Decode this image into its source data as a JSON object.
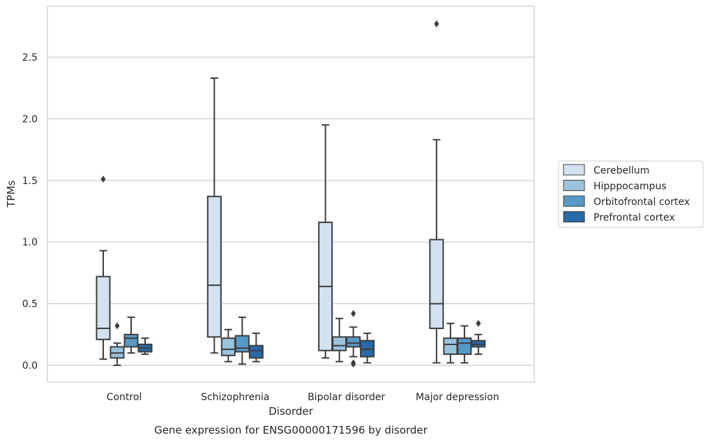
{
  "chart_data": {
    "type": "box",
    "title": "",
    "caption": "Gene expression for ENSG00000171596 by disorder",
    "xlabel": "Disorder",
    "ylabel": "TPMs",
    "ylim": [
      -0.13,
      2.9
    ],
    "yticks": [
      0.0,
      0.5,
      1.0,
      1.5,
      2.0,
      2.5
    ],
    "ytick_labels": [
      "0.0",
      "0.5",
      "1.0",
      "1.5",
      "2.0",
      "2.5"
    ],
    "grid": "horizontal",
    "legend_position": "right",
    "categories": [
      "Control",
      "Schizophrenia",
      "Bipolar disorder",
      "Major depression"
    ],
    "series": [
      {
        "name": "Cerebellum",
        "color": "#d3e2f0",
        "boxes": [
          {
            "whislo": 0.05,
            "q1": 0.21,
            "med": 0.3,
            "q3": 0.72,
            "whishi": 0.93,
            "fliers": [
              1.51
            ]
          },
          {
            "whislo": 0.1,
            "q1": 0.23,
            "med": 0.65,
            "q3": 1.37,
            "whishi": 2.33,
            "fliers": []
          },
          {
            "whislo": 0.06,
            "q1": 0.12,
            "med": 0.64,
            "q3": 1.16,
            "whishi": 1.95,
            "fliers": []
          },
          {
            "whislo": 0.02,
            "q1": 0.3,
            "med": 0.5,
            "q3": 1.02,
            "whishi": 1.83,
            "fliers": [
              2.77
            ]
          }
        ]
      },
      {
        "name": "Hipppocampus",
        "color": "#9ac3de",
        "boxes": [
          {
            "whislo": 0.0,
            "q1": 0.06,
            "med": 0.1,
            "q3": 0.15,
            "whishi": 0.18,
            "fliers": [
              0.32
            ]
          },
          {
            "whislo": 0.03,
            "q1": 0.08,
            "med": 0.13,
            "q3": 0.22,
            "whishi": 0.29,
            "fliers": []
          },
          {
            "whislo": 0.03,
            "q1": 0.12,
            "med": 0.16,
            "q3": 0.23,
            "whishi": 0.38,
            "fliers": []
          },
          {
            "whislo": 0.02,
            "q1": 0.09,
            "med": 0.17,
            "q3": 0.22,
            "whishi": 0.34,
            "fliers": []
          }
        ]
      },
      {
        "name": "Orbitofrontal cortex",
        "color": "#5799c7",
        "boxes": [
          {
            "whislo": 0.1,
            "q1": 0.15,
            "med": 0.22,
            "q3": 0.25,
            "whishi": 0.39,
            "fliers": []
          },
          {
            "whislo": 0.01,
            "q1": 0.11,
            "med": 0.14,
            "q3": 0.24,
            "whishi": 0.39,
            "fliers": []
          },
          {
            "whislo": 0.07,
            "q1": 0.15,
            "med": 0.18,
            "q3": 0.23,
            "whishi": 0.31,
            "fliers": [
              0.42,
              0.02,
              0.01
            ]
          },
          {
            "whislo": 0.02,
            "q1": 0.09,
            "med": 0.18,
            "q3": 0.22,
            "whishi": 0.32,
            "fliers": []
          }
        ]
      },
      {
        "name": "Prefrontal cortex",
        "color": "#2869a8",
        "boxes": [
          {
            "whislo": 0.09,
            "q1": 0.11,
            "med": 0.14,
            "q3": 0.17,
            "whishi": 0.22,
            "fliers": []
          },
          {
            "whislo": 0.03,
            "q1": 0.06,
            "med": 0.12,
            "q3": 0.16,
            "whishi": 0.26,
            "fliers": []
          },
          {
            "whislo": 0.02,
            "q1": 0.07,
            "med": 0.13,
            "q3": 0.2,
            "whishi": 0.26,
            "fliers": []
          },
          {
            "whislo": 0.09,
            "q1": 0.15,
            "med": 0.17,
            "q3": 0.2,
            "whishi": 0.25,
            "fliers": [
              0.34
            ]
          }
        ]
      }
    ]
  }
}
